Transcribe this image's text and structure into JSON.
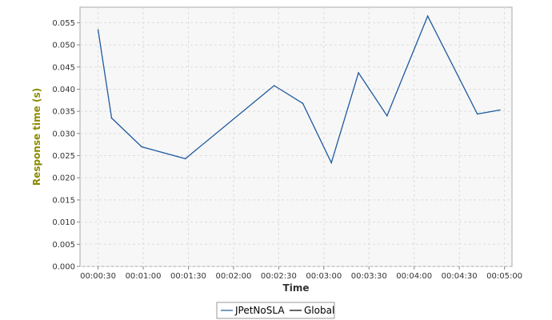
{
  "chart_data": {
    "type": "line",
    "title": "",
    "xlabel": "Time",
    "ylabel": "Response time (s)",
    "x_ticks": [
      "00:00:30",
      "00:01:00",
      "00:01:30",
      "00:02:00",
      "00:02:30",
      "00:03:00",
      "00:03:30",
      "00:04:00",
      "00:04:30",
      "00:05:00"
    ],
    "y_ticks": [
      "0.000",
      "0.005",
      "0.010",
      "0.015",
      "0.020",
      "0.025",
      "0.030",
      "0.035",
      "0.040",
      "0.045",
      "0.050",
      "0.055"
    ],
    "xlim": [
      "00:00:18",
      "00:05:05"
    ],
    "ylim": [
      0,
      0.0585
    ],
    "grid": true,
    "legend_position": "bottom",
    "series": [
      {
        "name": "JPetNoSLA",
        "color": "#1f5aa0",
        "points": [
          {
            "x": "00:00:30",
            "y": 0.0534
          },
          {
            "x": "00:00:39",
            "y": 0.0335
          },
          {
            "x": "00:00:59",
            "y": 0.027
          },
          {
            "x": "00:01:28",
            "y": 0.0243
          },
          {
            "x": "00:02:27",
            "y": 0.0408
          },
          {
            "x": "00:02:46",
            "y": 0.0368
          },
          {
            "x": "00:03:05",
            "y": 0.0234
          },
          {
            "x": "00:03:23",
            "y": 0.0437
          },
          {
            "x": "00:03:42",
            "y": 0.034
          },
          {
            "x": "00:04:09",
            "y": 0.0565
          },
          {
            "x": "00:04:42",
            "y": 0.0344
          },
          {
            "x": "00:04:57",
            "y": 0.0353
          }
        ]
      },
      {
        "name": "Global",
        "color": "#000000",
        "points": []
      }
    ]
  },
  "colors": {
    "plot_background": "#f7f7f7",
    "grid": "#dddddd",
    "axis_title": "#8a8a00"
  }
}
